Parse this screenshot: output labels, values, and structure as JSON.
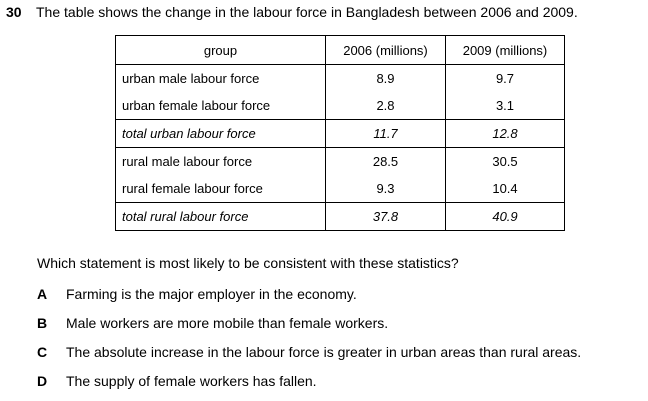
{
  "question": {
    "number": "30",
    "text": "The table shows the change in the labour force in Bangladesh between 2006 and 2009."
  },
  "table": {
    "headers": [
      "group",
      "2006 (millions)",
      "2009 (millions)"
    ],
    "rows": [
      {
        "group": "urban male labour force",
        "y2006": "8.9",
        "y2009": "9.7"
      },
      {
        "group": "urban female labour force",
        "y2006": "2.8",
        "y2009": "3.1"
      },
      {
        "group": "total urban labour force",
        "y2006": "11.7",
        "y2009": "12.8"
      },
      {
        "group": "rural male labour force",
        "y2006": "28.5",
        "y2009": "30.5"
      },
      {
        "group": "rural female labour force",
        "y2006": "9.3",
        "y2009": "10.4"
      },
      {
        "group": "total rural labour force",
        "y2006": "37.8",
        "y2009": "40.9"
      }
    ]
  },
  "prompt": "Which statement is most likely to be consistent with these statistics?",
  "options": [
    {
      "letter": "A",
      "text": "Farming is the major employer in the economy."
    },
    {
      "letter": "B",
      "text": "Male workers are more mobile than female workers."
    },
    {
      "letter": "C",
      "text": "The absolute increase in the labour force is greater in urban areas than rural areas."
    },
    {
      "letter": "D",
      "text": "The supply of female workers has fallen."
    }
  ]
}
